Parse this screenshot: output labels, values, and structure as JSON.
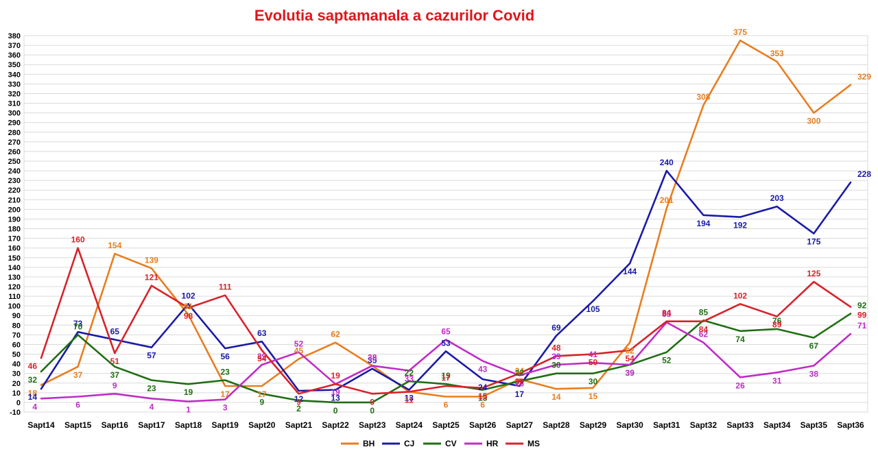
{
  "chart_data": {
    "type": "line",
    "title": "Evolutia saptamanala a cazurilor Covid",
    "xlabel": "",
    "ylabel": "",
    "ylim": [
      -10,
      380
    ],
    "ytick_step": 10,
    "grid": true,
    "legend_position": "bottom",
    "categories": [
      "Sapt14",
      "Sapt15",
      "Sapt16",
      "Sapt17",
      "Sapt18",
      "Sapt19",
      "Sapt20",
      "Sapt21",
      "Sapt22",
      "Sapt23",
      "Sapt24",
      "Sapt25",
      "Sapt26",
      "Sapt27",
      "Sapt28",
      "Sapt29",
      "Sapt30",
      "Sapt31",
      "Sapt32",
      "Sapt33",
      "Sapt34",
      "Sapt35",
      "Sapt36"
    ],
    "series": [
      {
        "name": "BH",
        "color": "#e87d1e",
        "values": [
          18,
          37,
          154,
          139,
          91,
          17,
          17,
          45,
          62,
          38,
          11,
          6,
          6,
          24,
          14,
          15,
          62,
          201,
          308,
          375,
          353,
          300,
          329
        ]
      },
      {
        "name": "CJ",
        "color": "#1a1aa6",
        "values": [
          14,
          73,
          65,
          57,
          102,
          56,
          63,
          12,
          13,
          35,
          13,
          53,
          24,
          17,
          69,
          105,
          144,
          240,
          194,
          192,
          203,
          175,
          228
        ]
      },
      {
        "name": "CV",
        "color": "#1f6e12",
        "values": [
          32,
          70,
          37,
          23,
          19,
          23,
          9,
          2,
          0,
          0,
          22,
          19,
          13,
          22,
          30,
          30,
          39,
          52,
          85,
          74,
          76,
          67,
          92
        ]
      },
      {
        "name": "HR",
        "color": "#c02bc8",
        "values": [
          4,
          6,
          9,
          4,
          1,
          3,
          39,
          52,
          19,
          38,
          33,
          65,
          43,
          28,
          39,
          41,
          39,
          83,
          62,
          26,
          31,
          38,
          71
        ]
      },
      {
        "name": "MS",
        "color": "#d8222a",
        "values": [
          46,
          160,
          51,
          121,
          98,
          111,
          54,
          9,
          19,
          9,
          11,
          17,
          15,
          30,
          48,
          50,
          54,
          84,
          84,
          102,
          89,
          125,
          99
        ]
      }
    ]
  }
}
